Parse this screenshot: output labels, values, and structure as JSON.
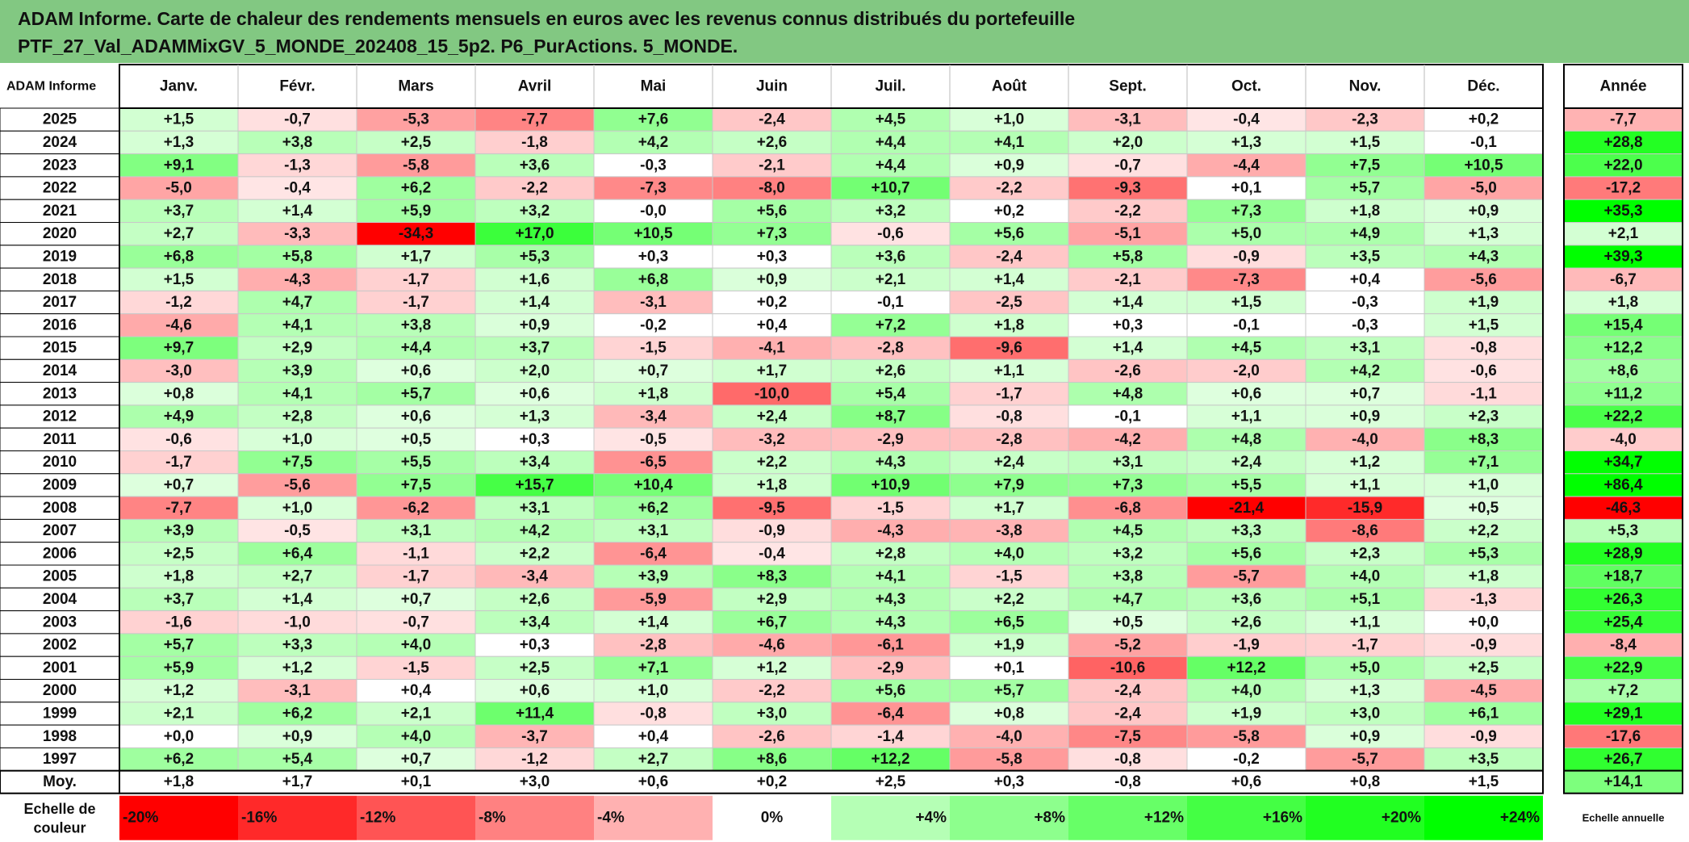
{
  "title": {
    "line1": "ADAM Informe. Carte de chaleur des rendements mensuels en euros avec les revenus connus distribués du portefeuille",
    "line2": "PTF_27_Val_ADAMMixGV_5_MONDE_202408_15_5p2. P6_PurActions. 5_MONDE."
  },
  "chart_data": {
    "type": "heatmap",
    "corner_label": "ADAM Informe",
    "columns": [
      "Janv.",
      "Févr.",
      "Mars",
      "Avril",
      "Mai",
      "Juin",
      "Juil.",
      "Août",
      "Sept.",
      "Oct.",
      "Nov.",
      "Déc."
    ],
    "year_column": "Année",
    "rows": [
      {
        "year": "2025",
        "values": [
          "+1,5",
          "-0,7",
          "-5,3",
          "-7,7",
          "+7,6",
          "-2,4",
          "+4,5",
          "+1,0",
          "-3,1",
          "-0,4",
          "-2,3",
          "+0,2"
        ],
        "annual": "-7,7"
      },
      {
        "year": "2024",
        "values": [
          "+1,3",
          "+3,8",
          "+2,5",
          "-1,8",
          "+4,2",
          "+2,6",
          "+4,4",
          "+4,1",
          "+2,0",
          "+1,3",
          "+1,5",
          "-0,1"
        ],
        "annual": "+28,8"
      },
      {
        "year": "2023",
        "values": [
          "+9,1",
          "-1,3",
          "-5,8",
          "+3,6",
          "-0,3",
          "-2,1",
          "+4,4",
          "+0,9",
          "-0,7",
          "-4,4",
          "+7,5",
          "+10,5"
        ],
        "annual": "+22,0"
      },
      {
        "year": "2022",
        "values": [
          "-5,0",
          "-0,4",
          "+6,2",
          "-2,2",
          "-7,3",
          "-8,0",
          "+10,7",
          "-2,2",
          "-9,3",
          "+0,1",
          "+5,7",
          "-5,0"
        ],
        "annual": "-17,2"
      },
      {
        "year": "2021",
        "values": [
          "+3,7",
          "+1,4",
          "+5,9",
          "+3,2",
          "-0,0",
          "+5,6",
          "+3,2",
          "+0,2",
          "-2,2",
          "+7,3",
          "+1,8",
          "+0,9"
        ],
        "annual": "+35,3"
      },
      {
        "year": "2020",
        "values": [
          "+2,7",
          "-3,3",
          "-34,3",
          "+17,0",
          "+10,5",
          "+7,3",
          "-0,6",
          "+5,6",
          "-5,1",
          "+5,0",
          "+4,9",
          "+1,3"
        ],
        "annual": "+2,1"
      },
      {
        "year": "2019",
        "values": [
          "+6,8",
          "+5,8",
          "+1,7",
          "+5,3",
          "+0,3",
          "+0,3",
          "+3,6",
          "-2,4",
          "+5,8",
          "-0,9",
          "+3,5",
          "+4,3"
        ],
        "annual": "+39,3"
      },
      {
        "year": "2018",
        "values": [
          "+1,5",
          "-4,3",
          "-1,7",
          "+1,6",
          "+6,8",
          "+0,9",
          "+2,1",
          "+1,4",
          "-2,1",
          "-7,3",
          "+0,4",
          "-5,6"
        ],
        "annual": "-6,7"
      },
      {
        "year": "2017",
        "values": [
          "-1,2",
          "+4,7",
          "-1,7",
          "+1,4",
          "-3,1",
          "+0,2",
          "-0,1",
          "-2,5",
          "+1,4",
          "+1,5",
          "-0,3",
          "+1,9"
        ],
        "annual": "+1,8"
      },
      {
        "year": "2016",
        "values": [
          "-4,6",
          "+4,1",
          "+3,8",
          "+0,9",
          "-0,2",
          "+0,4",
          "+7,2",
          "+1,8",
          "+0,3",
          "-0,1",
          "-0,3",
          "+1,5"
        ],
        "annual": "+15,4"
      },
      {
        "year": "2015",
        "values": [
          "+9,7",
          "+2,9",
          "+4,4",
          "+3,7",
          "-1,5",
          "-4,1",
          "-2,8",
          "-9,6",
          "+1,4",
          "+4,5",
          "+3,1",
          "-0,8"
        ],
        "annual": "+12,2"
      },
      {
        "year": "2014",
        "values": [
          "-3,0",
          "+3,9",
          "+0,6",
          "+2,0",
          "+0,7",
          "+1,7",
          "+2,6",
          "+1,1",
          "-2,6",
          "-2,0",
          "+4,2",
          "-0,6"
        ],
        "annual": "+8,6"
      },
      {
        "year": "2013",
        "values": [
          "+0,8",
          "+4,1",
          "+5,7",
          "+0,6",
          "+1,8",
          "-10,0",
          "+5,4",
          "-1,7",
          "+4,8",
          "+0,6",
          "+0,7",
          "-1,1"
        ],
        "annual": "+11,2"
      },
      {
        "year": "2012",
        "values": [
          "+4,9",
          "+2,8",
          "+0,6",
          "+1,3",
          "-3,4",
          "+2,4",
          "+8,7",
          "-0,8",
          "-0,1",
          "+1,1",
          "+0,9",
          "+2,3"
        ],
        "annual": "+22,2"
      },
      {
        "year": "2011",
        "values": [
          "-0,6",
          "+1,0",
          "+0,5",
          "+0,3",
          "-0,5",
          "-3,2",
          "-2,9",
          "-2,8",
          "-4,2",
          "+4,8",
          "-4,0",
          "+8,3"
        ],
        "annual": "-4,0"
      },
      {
        "year": "2010",
        "values": [
          "-1,7",
          "+7,5",
          "+5,5",
          "+3,4",
          "-6,5",
          "+2,2",
          "+4,3",
          "+2,4",
          "+3,1",
          "+2,4",
          "+1,2",
          "+7,1"
        ],
        "annual": "+34,7"
      },
      {
        "year": "2009",
        "values": [
          "+0,7",
          "-5,6",
          "+7,5",
          "+15,7",
          "+10,4",
          "+1,8",
          "+10,9",
          "+7,9",
          "+7,3",
          "+5,5",
          "+1,1",
          "+1,0"
        ],
        "annual": "+86,4"
      },
      {
        "year": "2008",
        "values": [
          "-7,7",
          "+1,0",
          "-6,2",
          "+3,1",
          "+6,2",
          "-9,5",
          "-1,5",
          "+1,7",
          "-6,8",
          "-21,4",
          "-15,9",
          "+0,5"
        ],
        "annual": "-46,3"
      },
      {
        "year": "2007",
        "values": [
          "+3,9",
          "-0,5",
          "+3,1",
          "+4,2",
          "+3,1",
          "-0,9",
          "-4,3",
          "-3,8",
          "+4,5",
          "+3,3",
          "-8,6",
          "+2,2"
        ],
        "annual": "+5,3"
      },
      {
        "year": "2006",
        "values": [
          "+2,5",
          "+6,4",
          "-1,1",
          "+2,2",
          "-6,4",
          "-0,4",
          "+2,8",
          "+4,0",
          "+3,2",
          "+5,6",
          "+2,3",
          "+5,3"
        ],
        "annual": "+28,9"
      },
      {
        "year": "2005",
        "values": [
          "+1,8",
          "+2,7",
          "-1,7",
          "-3,4",
          "+3,9",
          "+8,3",
          "+4,1",
          "-1,5",
          "+3,8",
          "-5,7",
          "+4,0",
          "+1,8"
        ],
        "annual": "+18,7"
      },
      {
        "year": "2004",
        "values": [
          "+3,7",
          "+1,4",
          "+0,7",
          "+2,6",
          "-5,9",
          "+2,9",
          "+4,3",
          "+2,2",
          "+4,7",
          "+3,6",
          "+5,1",
          "-1,3"
        ],
        "annual": "+26,3"
      },
      {
        "year": "2003",
        "values": [
          "-1,6",
          "-1,0",
          "-0,7",
          "+3,4",
          "+1,4",
          "+6,7",
          "+4,3",
          "+6,5",
          "+0,5",
          "+2,6",
          "+1,1",
          "+0,0"
        ],
        "annual": "+25,4"
      },
      {
        "year": "2002",
        "values": [
          "+5,7",
          "+3,3",
          "+4,0",
          "+0,3",
          "-2,8",
          "-4,6",
          "-6,1",
          "+1,9",
          "-5,2",
          "-1,9",
          "-1,7",
          "-0,9"
        ],
        "annual": "-8,4"
      },
      {
        "year": "2001",
        "values": [
          "+5,9",
          "+1,2",
          "-1,5",
          "+2,5",
          "+7,1",
          "+1,2",
          "-2,9",
          "+0,1",
          "-10,6",
          "+12,2",
          "+5,0",
          "+2,5"
        ],
        "annual": "+22,9"
      },
      {
        "year": "2000",
        "values": [
          "+1,2",
          "-3,1",
          "+0,4",
          "+0,6",
          "+1,0",
          "-2,2",
          "+5,6",
          "+5,7",
          "-2,4",
          "+4,0",
          "+1,3",
          "-4,5"
        ],
        "annual": "+7,2"
      },
      {
        "year": "1999",
        "values": [
          "+2,1",
          "+6,2",
          "+2,1",
          "+11,4",
          "-0,8",
          "+3,0",
          "-6,4",
          "+0,8",
          "-2,4",
          "+1,9",
          "+3,0",
          "+6,1"
        ],
        "annual": "+29,1"
      },
      {
        "year": "1998",
        "values": [
          "+0,0",
          "+0,9",
          "+4,0",
          "-3,7",
          "+0,4",
          "-2,6",
          "-1,4",
          "-4,0",
          "-7,5",
          "-5,8",
          "+0,9",
          "-0,9"
        ],
        "annual": "-17,6"
      },
      {
        "year": "1997",
        "values": [
          "+6,2",
          "+5,4",
          "+0,7",
          "-1,2",
          "+2,7",
          "+8,6",
          "+12,2",
          "-5,8",
          "-0,8",
          "-0,2",
          "-5,7",
          "+3,5"
        ],
        "annual": "+26,7"
      }
    ],
    "average_row": {
      "label": "Moy.",
      "values": [
        "+1,8",
        "+1,7",
        "+0,1",
        "+3,0",
        "+0,6",
        "+0,2",
        "+2,5",
        "+0,3",
        "-0,8",
        "+0,6",
        "+0,8",
        "+1,5"
      ],
      "annual": "+14,1"
    },
    "scale": {
      "label_line1": "Echelle de",
      "label_line2": "couleur",
      "stops": [
        "-20%",
        "-16%",
        "-12%",
        "-8%",
        "-4%",
        "0%",
        "+4%",
        "+8%",
        "+12%",
        "+16%",
        "+20%",
        "+24%"
      ],
      "stop_values": [
        -20,
        -16,
        -12,
        -8,
        -4,
        0,
        4,
        8,
        12,
        16,
        20,
        24
      ],
      "annual_note": "Echelle annuelle"
    },
    "colors": {
      "title_bar": "#82c882",
      "negative_max": "#ff0000",
      "positive_max": "#00ff00",
      "neutral": "#ffffff"
    }
  }
}
